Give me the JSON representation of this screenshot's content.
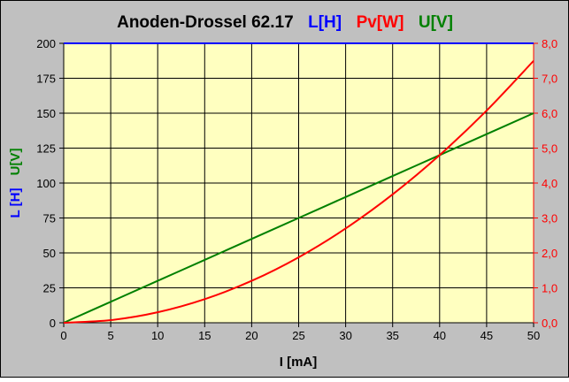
{
  "chart_data": {
    "type": "line",
    "title": {
      "main": "Anoden-Drossel 62.17",
      "parts": [
        {
          "text": "L[H]",
          "color": "#0000ff"
        },
        {
          "text": "Pv[W]",
          "color": "#ff0000"
        },
        {
          "text": "U[V]",
          "color": "#008000"
        }
      ]
    },
    "xlabel": "I [mA]",
    "ylabel_left_parts": [
      {
        "text": "L [H]",
        "color": "#0000ff"
      },
      {
        "text": "U[V]",
        "color": "#008000"
      }
    ],
    "xlim": [
      0,
      50
    ],
    "ylim_left": [
      0,
      200
    ],
    "ylim_right": [
      0,
      8
    ],
    "x_ticks": [
      "0",
      "5",
      "10",
      "15",
      "20",
      "25",
      "30",
      "35",
      "40",
      "45",
      "50"
    ],
    "y_left_ticks": [
      "0",
      "25",
      "50",
      "75",
      "100",
      "125",
      "150",
      "175",
      "200"
    ],
    "y_right_ticks": [
      "0,0",
      "1,0",
      "2,0",
      "3,0",
      "4,0",
      "5,0",
      "6,0",
      "7,0",
      "8,0"
    ],
    "grid": true,
    "colors": {
      "plot_background": "#ffffc0",
      "chart_background": "#c0c0c0",
      "right_axis": "#ff0000"
    },
    "series": [
      {
        "name": "L[H]",
        "axis": "left",
        "color": "#0000ff",
        "x": [
          0,
          5,
          10,
          15,
          20,
          25,
          30,
          35,
          40,
          45,
          50
        ],
        "y": [
          200,
          200,
          200,
          200,
          200,
          200,
          200,
          200,
          200,
          200,
          200
        ]
      },
      {
        "name": "U[V]",
        "axis": "left",
        "color": "#008000",
        "x": [
          0,
          5,
          10,
          15,
          20,
          25,
          30,
          35,
          40,
          45,
          50
        ],
        "y": [
          0,
          15,
          30,
          45,
          60,
          75,
          90,
          105,
          120,
          135,
          150
        ]
      },
      {
        "name": "Pv[W]",
        "axis": "right",
        "color": "#ff0000",
        "x": [
          0,
          5,
          10,
          15,
          20,
          25,
          30,
          35,
          40,
          45,
          50
        ],
        "y": [
          0,
          0.075,
          0.3,
          0.675,
          1.2,
          1.875,
          2.7,
          3.675,
          4.8,
          6.075,
          7.5
        ]
      }
    ]
  }
}
